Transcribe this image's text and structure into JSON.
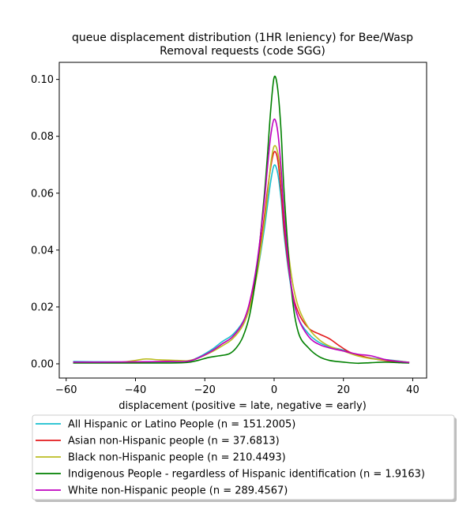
{
  "chart_data": {
    "type": "line",
    "title_line1": "queue displacement distribution (1HR leniency) for Bee/Wasp",
    "title_line2": "Removal  requests (code SGG)",
    "xlabel": "displacement (positive = late, negative = early)",
    "ylabel": "",
    "xlim": [
      -62,
      44
    ],
    "ylim": [
      -0.005,
      0.106
    ],
    "xticks": [
      -60,
      -40,
      -20,
      0,
      20,
      40
    ],
    "xtick_labels": [
      "−60",
      "−40",
      "−20",
      "0",
      "20",
      "40"
    ],
    "yticks": [
      0.0,
      0.02,
      0.04,
      0.06,
      0.08,
      0.1
    ],
    "ytick_labels": [
      "0.00",
      "0.02",
      "0.04",
      "0.06",
      "0.08",
      "0.10"
    ],
    "grid": false,
    "legend_position": "bottom",
    "series": [
      {
        "name": "All Hispanic or Latino People (n = 151.2005)",
        "color": "#17becf",
        "points": [
          [
            -58,
            0.0008
          ],
          [
            -50,
            0.0007
          ],
          [
            -40,
            0.0006
          ],
          [
            -30,
            0.0008
          ],
          [
            -25,
            0.001
          ],
          [
            -22,
            0.0022
          ],
          [
            -18,
            0.005
          ],
          [
            -15,
            0.0078
          ],
          [
            -12,
            0.0102
          ],
          [
            -9,
            0.0148
          ],
          [
            -7,
            0.021
          ],
          [
            -5,
            0.031
          ],
          [
            -3,
            0.046
          ],
          [
            -2,
            0.055
          ],
          [
            -1,
            0.064
          ],
          [
            0,
            0.0698
          ],
          [
            1,
            0.0672
          ],
          [
            2,
            0.058
          ],
          [
            3,
            0.044
          ],
          [
            5,
            0.026
          ],
          [
            7,
            0.016
          ],
          [
            10,
            0.0105
          ],
          [
            13,
            0.0075
          ],
          [
            16,
            0.006
          ],
          [
            20,
            0.0048
          ],
          [
            24,
            0.003
          ],
          [
            28,
            0.002
          ],
          [
            32,
            0.0015
          ],
          [
            36,
            0.001
          ],
          [
            39,
            0.0005
          ]
        ]
      },
      {
        "name": "Asian non-Hispanic people (n = 37.6813)",
        "color": "#e31a1c",
        "points": [
          [
            -58,
            0.0005
          ],
          [
            -50,
            0.0004
          ],
          [
            -40,
            0.0006
          ],
          [
            -30,
            0.0009
          ],
          [
            -25,
            0.001
          ],
          [
            -22,
            0.002
          ],
          [
            -18,
            0.0045
          ],
          [
            -15,
            0.007
          ],
          [
            -12,
            0.0095
          ],
          [
            -9,
            0.0145
          ],
          [
            -7,
            0.0215
          ],
          [
            -5,
            0.033
          ],
          [
            -3,
            0.05
          ],
          [
            -2,
            0.06
          ],
          [
            -1,
            0.069
          ],
          [
            0,
            0.0745
          ],
          [
            1,
            0.072
          ],
          [
            2,
            0.061
          ],
          [
            3,
            0.046
          ],
          [
            5,
            0.027
          ],
          [
            7,
            0.018
          ],
          [
            10,
            0.0125
          ],
          [
            13,
            0.0105
          ],
          [
            16,
            0.0088
          ],
          [
            19,
            0.0062
          ],
          [
            22,
            0.004
          ],
          [
            26,
            0.0025
          ],
          [
            30,
            0.0015
          ],
          [
            35,
            0.0008
          ],
          [
            39,
            0.0005
          ]
        ]
      },
      {
        "name": "Black non-Hispanic people (n = 210.4493)",
        "color": "#bcbd22",
        "points": [
          [
            -58,
            0.0004
          ],
          [
            -50,
            0.0004
          ],
          [
            -44,
            0.0006
          ],
          [
            -40,
            0.0012
          ],
          [
            -37,
            0.0017
          ],
          [
            -33,
            0.0014
          ],
          [
            -28,
            0.0012
          ],
          [
            -25,
            0.0011
          ],
          [
            -22,
            0.002
          ],
          [
            -18,
            0.0042
          ],
          [
            -15,
            0.0063
          ],
          [
            -12,
            0.0088
          ],
          [
            -9,
            0.0135
          ],
          [
            -7,
            0.02
          ],
          [
            -5,
            0.031
          ],
          [
            -3,
            0.048
          ],
          [
            -2,
            0.058
          ],
          [
            -1,
            0.07
          ],
          [
            0,
            0.0765
          ],
          [
            1,
            0.0745
          ],
          [
            2,
            0.066
          ],
          [
            3,
            0.052
          ],
          [
            5,
            0.031
          ],
          [
            7,
            0.02
          ],
          [
            10,
            0.0125
          ],
          [
            13,
            0.0085
          ],
          [
            16,
            0.0062
          ],
          [
            20,
            0.0045
          ],
          [
            24,
            0.0028
          ],
          [
            28,
            0.0018
          ],
          [
            32,
            0.0014
          ],
          [
            36,
            0.0009
          ],
          [
            39,
            0.0005
          ]
        ]
      },
      {
        "name": "Indigenous People - regardless of Hispanic identification (n = 1.9163)",
        "color": "#008000",
        "points": [
          [
            -58,
            0.0003
          ],
          [
            -50,
            0.0003
          ],
          [
            -40,
            0.0003
          ],
          [
            -30,
            0.0003
          ],
          [
            -25,
            0.0005
          ],
          [
            -22,
            0.0012
          ],
          [
            -19,
            0.0022
          ],
          [
            -16,
            0.0028
          ],
          [
            -13,
            0.0035
          ],
          [
            -11,
            0.0055
          ],
          [
            -9,
            0.0095
          ],
          [
            -7,
            0.0175
          ],
          [
            -5,
            0.033
          ],
          [
            -3,
            0.057
          ],
          [
            -2,
            0.072
          ],
          [
            -1,
            0.089
          ],
          [
            0,
            0.1007
          ],
          [
            1,
            0.097
          ],
          [
            2,
            0.082
          ],
          [
            3,
            0.058
          ],
          [
            5,
            0.026
          ],
          [
            7,
            0.011
          ],
          [
            10,
            0.0055
          ],
          [
            13,
            0.0025
          ],
          [
            16,
            0.0012
          ],
          [
            20,
            0.0006
          ],
          [
            24,
            0.0002
          ],
          [
            28,
            0.0004
          ],
          [
            32,
            0.0006
          ],
          [
            36,
            0.0004
          ],
          [
            39,
            0.0003
          ]
        ]
      },
      {
        "name": "White non-Hispanic people (n = 289.4567)",
        "color": "#bf00bf",
        "points": [
          [
            -58,
            0.0006
          ],
          [
            -50,
            0.0006
          ],
          [
            -40,
            0.0007
          ],
          [
            -30,
            0.0008
          ],
          [
            -25,
            0.0009
          ],
          [
            -22,
            0.002
          ],
          [
            -18,
            0.0045
          ],
          [
            -15,
            0.007
          ],
          [
            -12,
            0.0095
          ],
          [
            -9,
            0.0145
          ],
          [
            -7,
            0.022
          ],
          [
            -5,
            0.035
          ],
          [
            -3,
            0.055
          ],
          [
            -2,
            0.068
          ],
          [
            -1,
            0.08
          ],
          [
            0,
            0.086
          ],
          [
            1,
            0.082
          ],
          [
            2,
            0.069
          ],
          [
            3,
            0.05
          ],
          [
            5,
            0.027
          ],
          [
            7,
            0.016
          ],
          [
            10,
            0.0095
          ],
          [
            13,
            0.0068
          ],
          [
            16,
            0.0056
          ],
          [
            20,
            0.0045
          ],
          [
            24,
            0.0034
          ],
          [
            28,
            0.0028
          ],
          [
            32,
            0.0015
          ],
          [
            36,
            0.0008
          ],
          [
            39,
            0.0005
          ]
        ]
      }
    ]
  }
}
